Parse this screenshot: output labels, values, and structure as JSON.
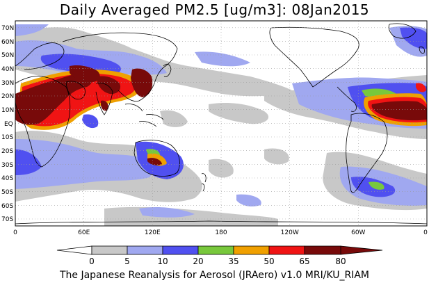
{
  "title": "Daily Averaged PM2.5 [ug/m3]: 08Jan2015",
  "footer": "The Japanese Reanalysis for Aerosol (JRAero) v1.0 MRI/KU_RIAM",
  "lat_labels": [
    "70N",
    "60N",
    "50N",
    "40N",
    "30N",
    "20N",
    "10N",
    "EQ",
    "10S",
    "20S",
    "30S",
    "40S",
    "50S",
    "60S",
    "70S"
  ],
  "lon_labels": [
    "0",
    "60E",
    "120E",
    "180",
    "120W",
    "60W",
    "0"
  ],
  "colorbar": {
    "ticks": [
      "0",
      "5",
      "10",
      "20",
      "35",
      "50",
      "65",
      "80"
    ],
    "colors": [
      "#ffffff",
      "#c8c8c8",
      "#a0a8f0",
      "#5050f0",
      "#78c83c",
      "#f0a000",
      "#f01414",
      "#780a0a"
    ]
  }
}
